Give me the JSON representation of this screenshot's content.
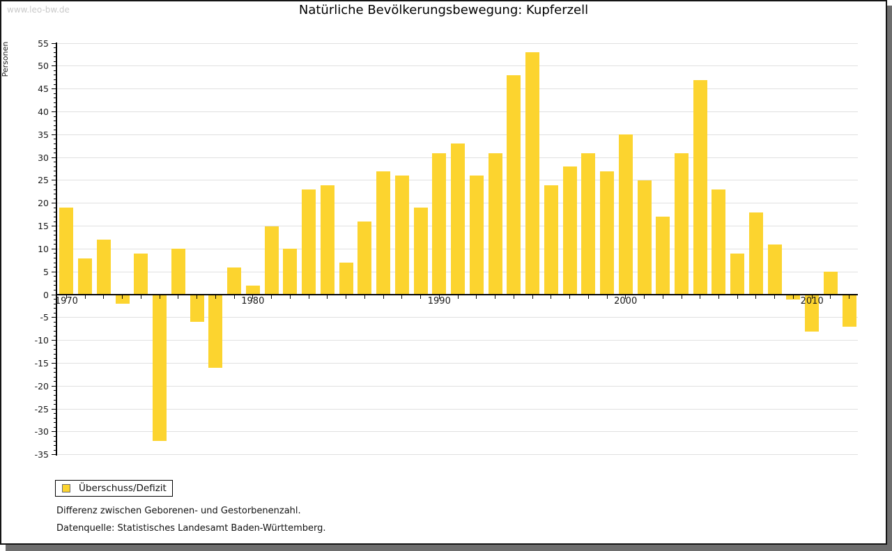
{
  "watermark": "www.leo-bw.de",
  "legend": {
    "label": "Überschuss/Defizit"
  },
  "notes": [
    "Differenz zwischen Geborenen- und Gestorbenenzahl.",
    "Datenquelle: Statistisches Landesamt Baden-Württemberg."
  ],
  "colors": {
    "bar": "#FCD42F",
    "grid": "#E0E0E0",
    "axis": "#000000",
    "frame_shadow": "#6E6E6E",
    "watermark": "#C9C9C9"
  },
  "chart_data": {
    "type": "bar",
    "title": "Natürliche Bevölkerungsbewegung: Kupferzell",
    "xlabel": "",
    "ylabel": "Personen",
    "series_name": "Überschuss/Defizit",
    "x": [
      1970,
      1971,
      1972,
      1973,
      1974,
      1975,
      1976,
      1977,
      1978,
      1979,
      1980,
      1981,
      1982,
      1983,
      1984,
      1985,
      1986,
      1987,
      1988,
      1989,
      1990,
      1991,
      1992,
      1993,
      1994,
      1995,
      1996,
      1997,
      1998,
      1999,
      2000,
      2001,
      2002,
      2003,
      2004,
      2005,
      2006,
      2007,
      2008,
      2009,
      2010,
      2011,
      2012
    ],
    "values": [
      19,
      8,
      12,
      -2,
      9,
      -32,
      10,
      -6,
      -16,
      6,
      2,
      15,
      10,
      23,
      24,
      7,
      16,
      27,
      26,
      19,
      31,
      33,
      26,
      31,
      48,
      53,
      24,
      28,
      31,
      27,
      35,
      25,
      17,
      31,
      47,
      23,
      9,
      18,
      11,
      -1,
      -8,
      5,
      -7
    ],
    "ylim": [
      -35,
      55
    ],
    "ytick_step": 5,
    "xtick_labels": [
      1970,
      1980,
      1990,
      2000,
      2010
    ],
    "grid": true,
    "legend_position": "bottom-left",
    "bar_color": "#FCD42F"
  }
}
